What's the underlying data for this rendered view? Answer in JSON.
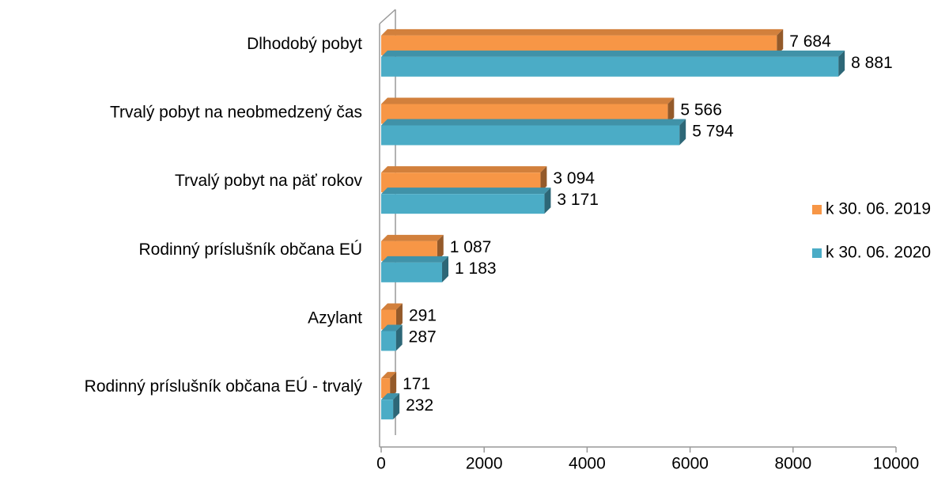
{
  "chart_data": {
    "type": "bar",
    "orientation": "horizontal",
    "categories": [
      "Dlhodobý pobyt",
      "Trvalý pobyt na neobmedzený čas",
      "Trvalý pobyt na päť rokov",
      "Rodinný príslušník občana EÚ",
      "Azylant",
      "Rodinný príslušník občana EÚ - trvalý"
    ],
    "series": [
      {
        "name": "k 30. 06. 2019",
        "color": "#f79646",
        "values": [
          7684,
          5566,
          3094,
          1087,
          291,
          171
        ],
        "value_labels": [
          "7 684",
          "5 566",
          "3 094",
          "1 087",
          "291",
          "171"
        ]
      },
      {
        "name": "k 30. 06. 2020",
        "color": "#4bacc6",
        "values": [
          8881,
          5794,
          3171,
          1183,
          287,
          232
        ],
        "value_labels": [
          "8 881",
          "5 794",
          "3 171",
          "1 183",
          "287",
          "232"
        ]
      }
    ],
    "xlim": [
      0,
      10000
    ],
    "xticks": [
      0,
      2000,
      4000,
      6000,
      8000,
      10000
    ],
    "legend": "right"
  }
}
